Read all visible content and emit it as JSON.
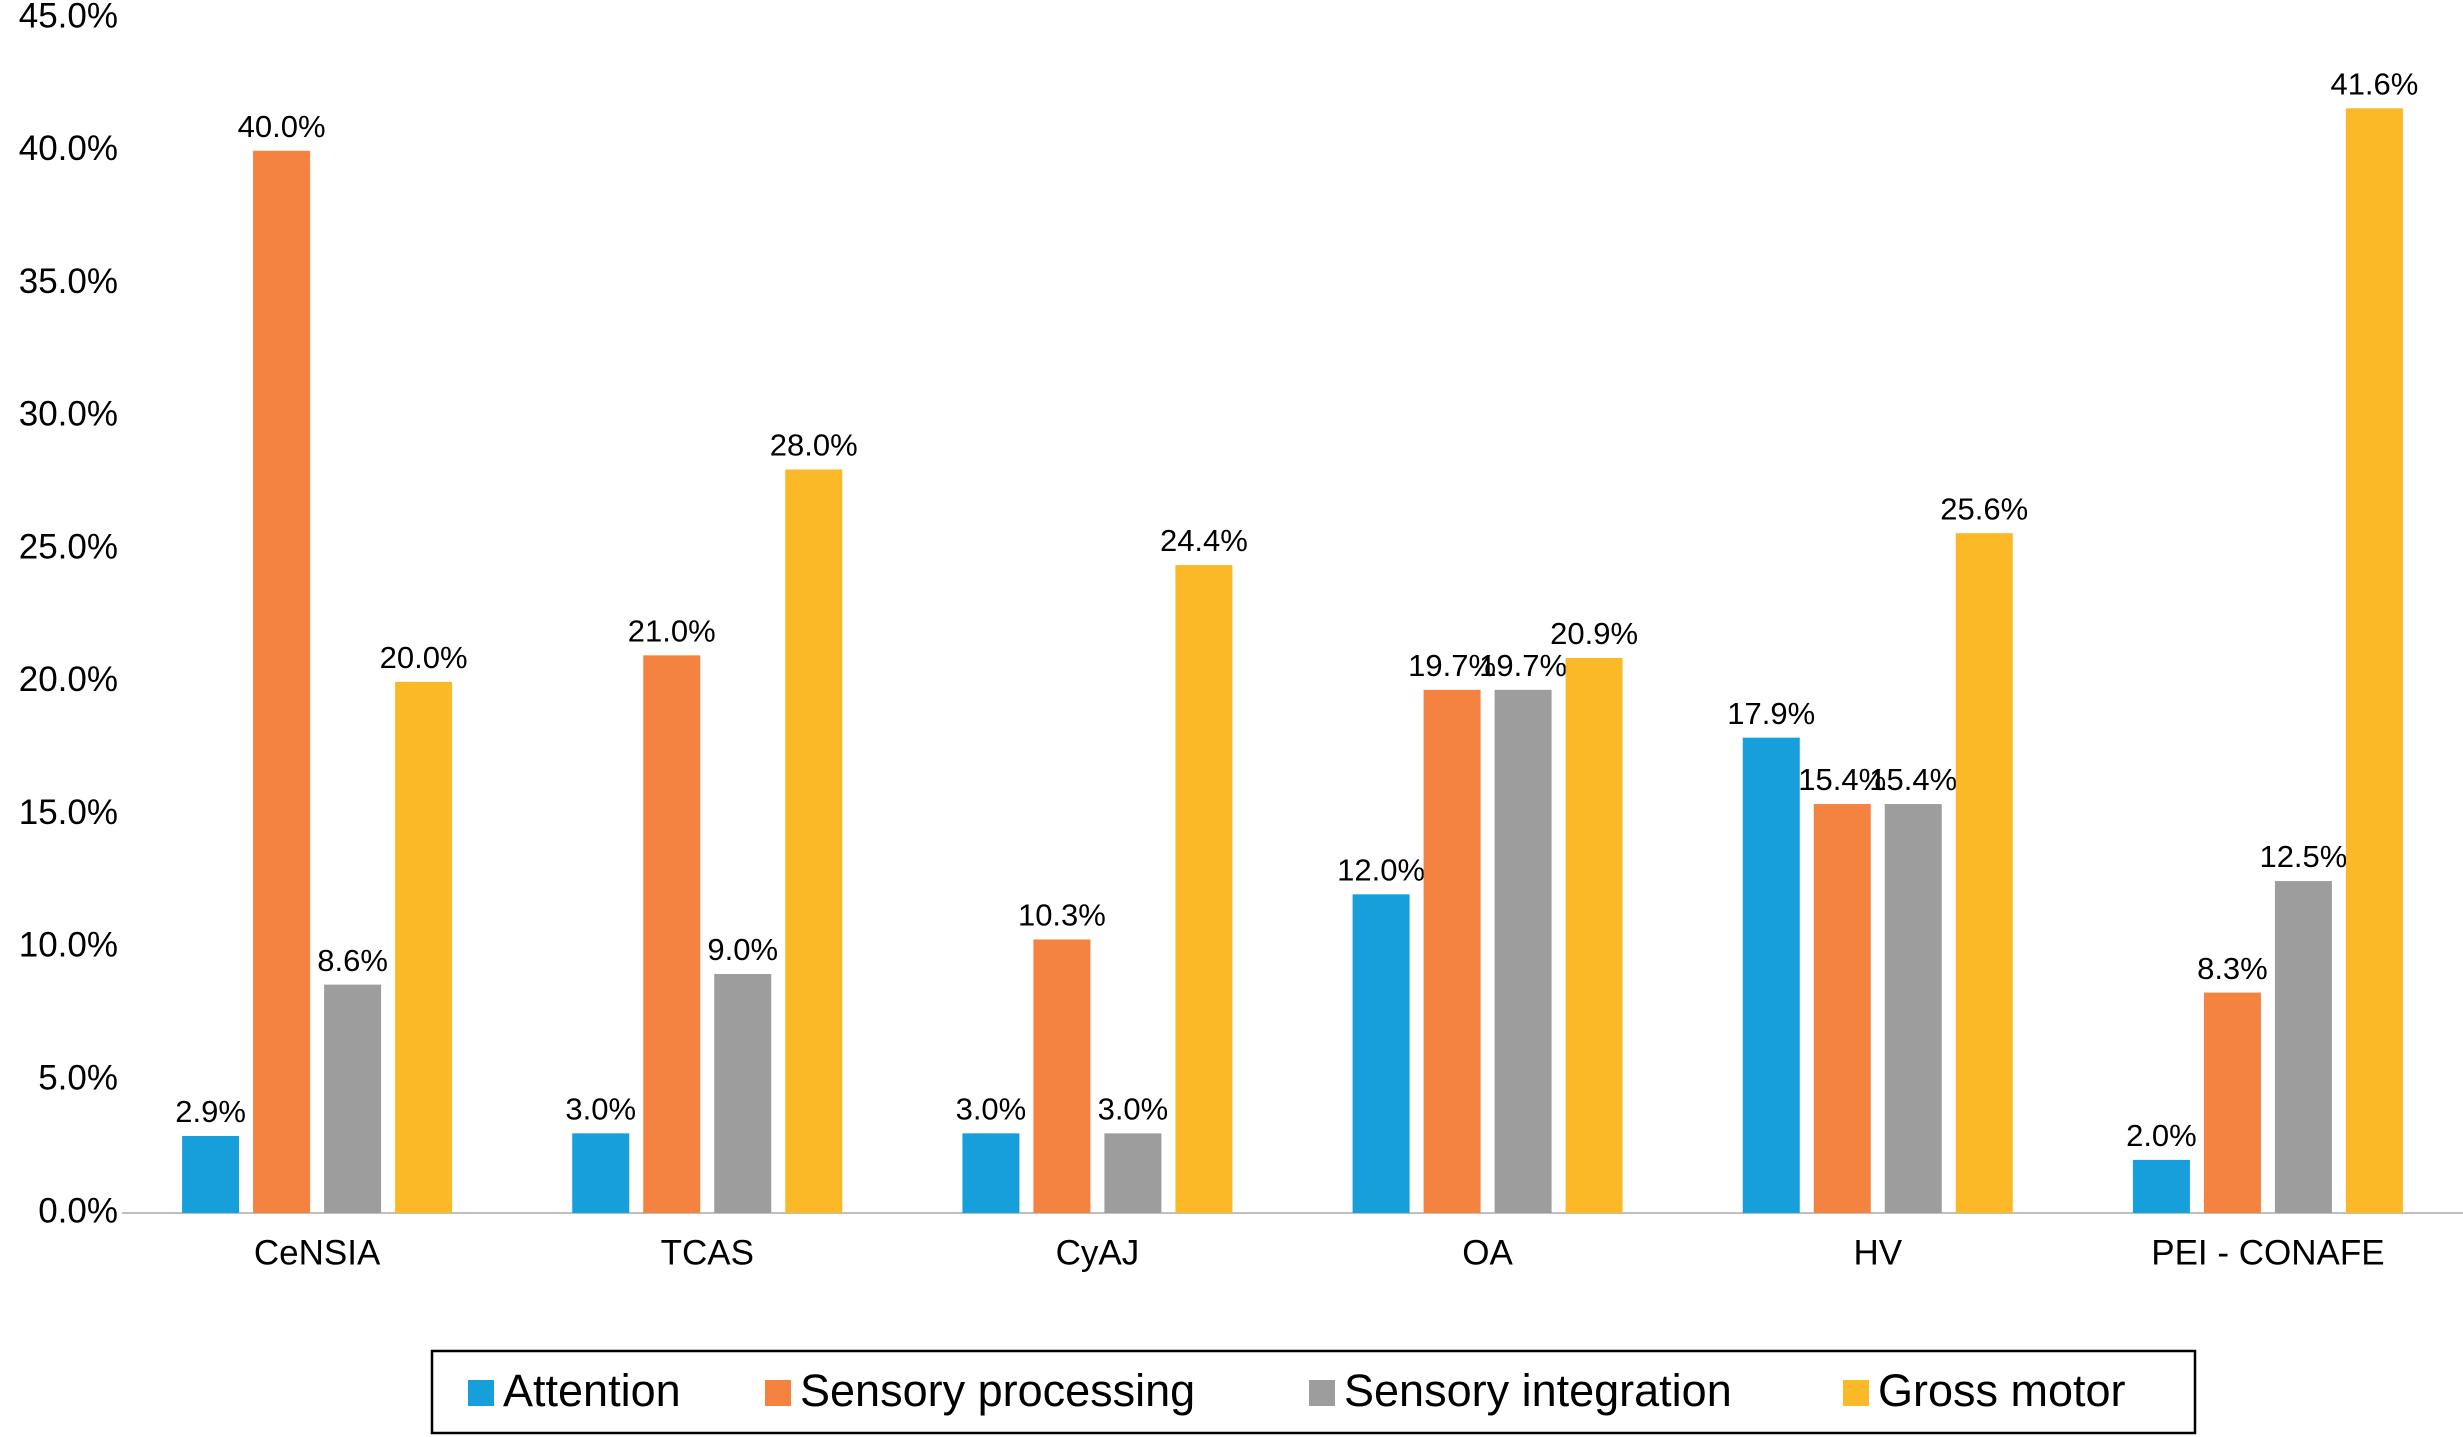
{
  "chart_data": {
    "type": "bar",
    "categories": [
      "CeNSIA",
      "TCAS",
      "CyAJ",
      "OA",
      "HV",
      "PEI - CONAFE"
    ],
    "series": [
      {
        "name": "Attention",
        "color": "#169fdb",
        "values": [
          2.9,
          3.0,
          3.0,
          12.0,
          17.9,
          2.0
        ],
        "value_labels": [
          "2.9%",
          "3.0%",
          "3.0%",
          "12.0%",
          "17.9%",
          "2.0%"
        ]
      },
      {
        "name": "Sensory processing",
        "color": "#f48341",
        "values": [
          40.0,
          21.0,
          10.3,
          19.7,
          15.4,
          8.3
        ],
        "value_labels": [
          "40.0%",
          "21.0%",
          "10.3%",
          "19.7%",
          "15.4%",
          "8.3%"
        ]
      },
      {
        "name": "Sensory integration",
        "color": "#9d9d9d",
        "values": [
          8.6,
          9.0,
          3.0,
          19.7,
          15.4,
          12.5
        ],
        "value_labels": [
          "8.6%",
          "9.0%",
          "3.0%",
          "19.7%",
          "15.4%",
          "12.5%"
        ]
      },
      {
        "name": "Gross motor",
        "color": "#fbb827",
        "values": [
          20.0,
          28.0,
          24.4,
          20.9,
          25.6,
          41.6
        ],
        "value_labels": [
          "20.0%",
          "28.0%",
          "24.4%",
          "20.9%",
          "25.6%",
          "41.6%"
        ]
      }
    ],
    "ylim": [
      0,
      45
    ],
    "yticks": [
      {
        "value": 0,
        "label": "0.0%"
      },
      {
        "value": 5,
        "label": "5.0%"
      },
      {
        "value": 10,
        "label": "10.0%"
      },
      {
        "value": 15,
        "label": "15.0%"
      },
      {
        "value": 20,
        "label": "20.0%"
      },
      {
        "value": 25,
        "label": "25.0%"
      },
      {
        "value": 30,
        "label": "30.0%"
      },
      {
        "value": 35,
        "label": "35.0%"
      },
      {
        "value": 40,
        "label": "40.0%"
      },
      {
        "value": 45,
        "label": "45.0%"
      }
    ],
    "grid": false,
    "legend": "bottom"
  }
}
